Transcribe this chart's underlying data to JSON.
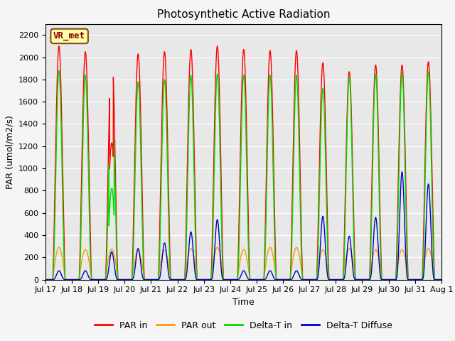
{
  "title": "Photosynthetic Active Radiation",
  "ylabel": "PAR (umol/m2/s)",
  "xlabel": "Time",
  "legend_label": "VR_met",
  "ylim": [
    0,
    2300
  ],
  "yticks": [
    0,
    200,
    400,
    600,
    800,
    1000,
    1200,
    1400,
    1600,
    1800,
    2000,
    2200
  ],
  "series": {
    "PAR in": {
      "color": "#ff0000",
      "lw": 1.0
    },
    "PAR out": {
      "color": "#ff9900",
      "lw": 1.0
    },
    "Delta-T in": {
      "color": "#00dd00",
      "lw": 1.0
    },
    "Delta-T Diffuse": {
      "color": "#0000cc",
      "lw": 1.0
    }
  },
  "xtick_labels": [
    "Jul 17",
    "Jul 18",
    "Jul 19",
    "Jul 20",
    "Jul 21",
    "Jul 22",
    "Jul 23",
    "Jul 24",
    "Jul 25",
    "Jul 26",
    "Jul 27",
    "Jul 28",
    "Jul 29",
    "Jul 30",
    "Jul 31",
    "Aug 1"
  ],
  "background_color": "#e8e8e8",
  "grid_color": "#ffffff",
  "title_fontsize": 11,
  "axis_label_fontsize": 9,
  "tick_fontsize": 8,
  "legend_fontsize": 9
}
